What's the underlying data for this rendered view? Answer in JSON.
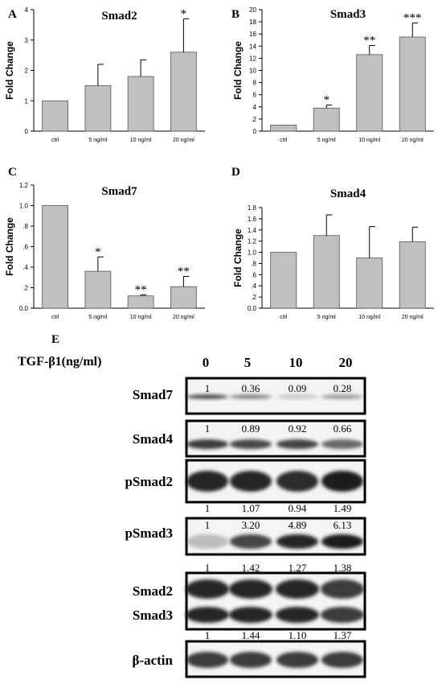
{
  "chart_data": [
    {
      "type": "bar",
      "panel_letter": "A",
      "title": "Smad2",
      "ylabel": "Fold Change",
      "categories": [
        "ctrl",
        "5 ng/ml",
        "10 ng/ml",
        "20 ng/ml"
      ],
      "values": [
        1.0,
        1.5,
        1.8,
        2.6
      ],
      "errors": [
        0,
        0.7,
        0.55,
        1.1
      ],
      "significance": [
        "",
        "",
        "",
        "*"
      ],
      "ylim": [
        0,
        4
      ],
      "yticks": [
        "0",
        "1",
        "2",
        "3",
        "4"
      ],
      "ytick_values": [
        0,
        1,
        2,
        3,
        4
      ]
    },
    {
      "type": "bar",
      "panel_letter": "B",
      "title": "Smad3",
      "ylabel": "Fold Change",
      "categories": [
        "ctrl",
        "5 ng/ml",
        "10 ng/ml",
        "20 ng/ml"
      ],
      "values": [
        1.0,
        3.8,
        12.6,
        15.5
      ],
      "errors": [
        0,
        0.5,
        1.5,
        2.3
      ],
      "significance": [
        "",
        "*",
        "**",
        "***"
      ],
      "ylim": [
        0,
        20
      ],
      "yticks": [
        "0",
        "2",
        "4",
        "6",
        "8",
        "10",
        "12",
        "14",
        "16",
        "18",
        "20"
      ],
      "ytick_values": [
        0,
        2,
        4,
        6,
        8,
        10,
        12,
        14,
        16,
        18,
        20
      ]
    },
    {
      "type": "bar",
      "panel_letter": "C",
      "title": "Smad7",
      "ylabel": "Fold Change",
      "categories": [
        "ctrl",
        "5 ng/ml",
        "10 ng/ml",
        "20 ng/ml"
      ],
      "values": [
        1.0,
        0.36,
        0.12,
        0.21
      ],
      "errors": [
        0,
        0.14,
        0.01,
        0.1
      ],
      "significance": [
        "",
        "*",
        "**",
        "**"
      ],
      "ylim": [
        0,
        1.2
      ],
      "yticks": [
        "0.0",
        ".2",
        ".4",
        ".6",
        ".8",
        "1.0",
        "1.2"
      ],
      "ytick_values": [
        0,
        0.2,
        0.4,
        0.6,
        0.8,
        1.0,
        1.2
      ]
    },
    {
      "type": "bar",
      "panel_letter": "D",
      "title": "Smad4",
      "ylabel": "Fold Change",
      "categories": [
        "ctrl",
        "5 ng/ml",
        "10 ng/ml",
        "20 ng/ml"
      ],
      "values": [
        1.0,
        1.3,
        0.9,
        1.19
      ],
      "errors": [
        0,
        0.37,
        0.56,
        0.26
      ],
      "significance": [
        "",
        "",
        "",
        ""
      ],
      "ylim": [
        0,
        1.8
      ],
      "yticks": [
        "0.0",
        ".2",
        ".4",
        ".6",
        ".8",
        "1.0",
        "1.2",
        "1.4",
        "1.6",
        "1.8"
      ],
      "ytick_values": [
        0,
        0.2,
        0.4,
        0.6,
        0.8,
        1.0,
        1.2,
        1.4,
        1.6,
        1.8
      ]
    }
  ],
  "blot": {
    "panel_letter": "E",
    "treatment_label": "TGF-β1(ng/ml)",
    "doses": [
      "0",
      "5",
      "10",
      "20"
    ],
    "rows": [
      {
        "label": "Smad7",
        "label2": "",
        "values": [
          "1",
          "0.36",
          "0.09",
          "0.28"
        ],
        "band_strength": [
          0.75,
          0.5,
          0.2,
          0.4
        ],
        "values_position": "top"
      },
      {
        "label": "Smad4",
        "label2": "",
        "values": [
          "1",
          "0.89",
          "0.92",
          "0.66"
        ],
        "band_strength": [
          0.85,
          0.8,
          0.82,
          0.65
        ],
        "values_position": "top"
      },
      {
        "label": "pSmad2",
        "label2": "",
        "values": [
          "1",
          "1.07",
          "0.94",
          "1.49"
        ],
        "band_strength": [
          0.95,
          0.95,
          0.92,
          1.0
        ],
        "values_position": "bottom"
      },
      {
        "label": "pSmad3",
        "label2": "",
        "values": [
          "1",
          "3.20",
          "4.89",
          "6.13"
        ],
        "band_strength": [
          0.25,
          0.8,
          0.95,
          1.0
        ],
        "values_position": "top"
      },
      {
        "label": "Smad2",
        "label2": "Smad3",
        "values": [
          "1",
          "1.42",
          "1.27",
          "1.38"
        ],
        "band_strength": [
          0.95,
          0.95,
          0.95,
          0.85
        ],
        "values_position": "above"
      },
      {
        "label": "β-actin",
        "label2": "",
        "values": [
          "1",
          "1.44",
          "1.10",
          "1.37"
        ],
        "band_strength": [
          0.85,
          0.85,
          0.85,
          0.85
        ],
        "values_position": "above"
      }
    ]
  },
  "colors": {
    "bar_fill": "#c0c0c0",
    "bar_stroke": "#555555",
    "band": "#1a1a1a",
    "axis": "#000000"
  }
}
